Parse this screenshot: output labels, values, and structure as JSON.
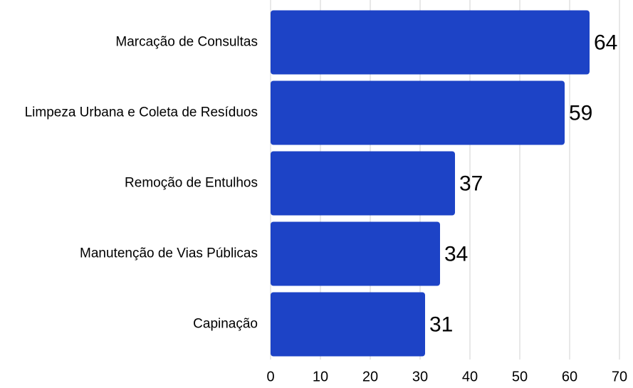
{
  "chart_data": {
    "type": "barh",
    "categories": [
      "Marcação de Consultas",
      "Limpeza Urbana e Coleta de Resíduos",
      "Remoção de Entulhos",
      "Manutenção de Vias Públicas",
      "Capinação"
    ],
    "values": [
      64,
      59,
      37,
      34,
      31
    ],
    "color": "#1d43c6",
    "xlim": [
      0,
      70
    ],
    "xticks": [
      0,
      10,
      20,
      30,
      40,
      50,
      60,
      70
    ],
    "grid": true
  }
}
